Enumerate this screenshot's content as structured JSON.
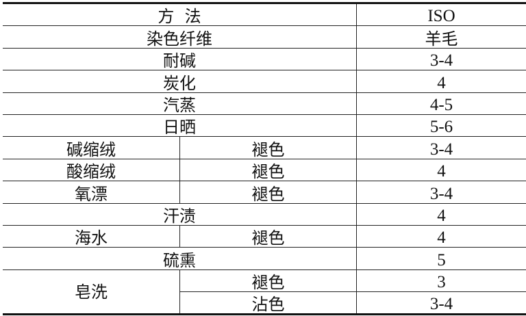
{
  "table": {
    "header": {
      "method": "方  法",
      "standard": "ISO"
    },
    "fiber_row": {
      "label": "染色纤维",
      "value": "羊毛"
    },
    "rows": [
      {
        "label": "耐碱",
        "value": "3-4"
      },
      {
        "label": "炭化",
        "value": "4"
      },
      {
        "label": "汽蒸",
        "value": "4-5"
      },
      {
        "label": "日晒",
        "value": "5-6"
      },
      {
        "label": "碱缩绒",
        "sub": "褪色",
        "value": "3-4"
      },
      {
        "label": "酸缩绒",
        "sub": "褪色",
        "value": "4"
      },
      {
        "label": "氧漂",
        "sub": "褪色",
        "value": "3-4"
      },
      {
        "label": "汗渍",
        "value": "4"
      },
      {
        "label": "海水",
        "sub": "褪色",
        "value": "4"
      },
      {
        "label": "硫熏",
        "value": "5"
      },
      {
        "label": "皂洗",
        "sub": "褪色",
        "value": "3"
      },
      {
        "sub": "沾色",
        "value": "3-4"
      }
    ]
  }
}
